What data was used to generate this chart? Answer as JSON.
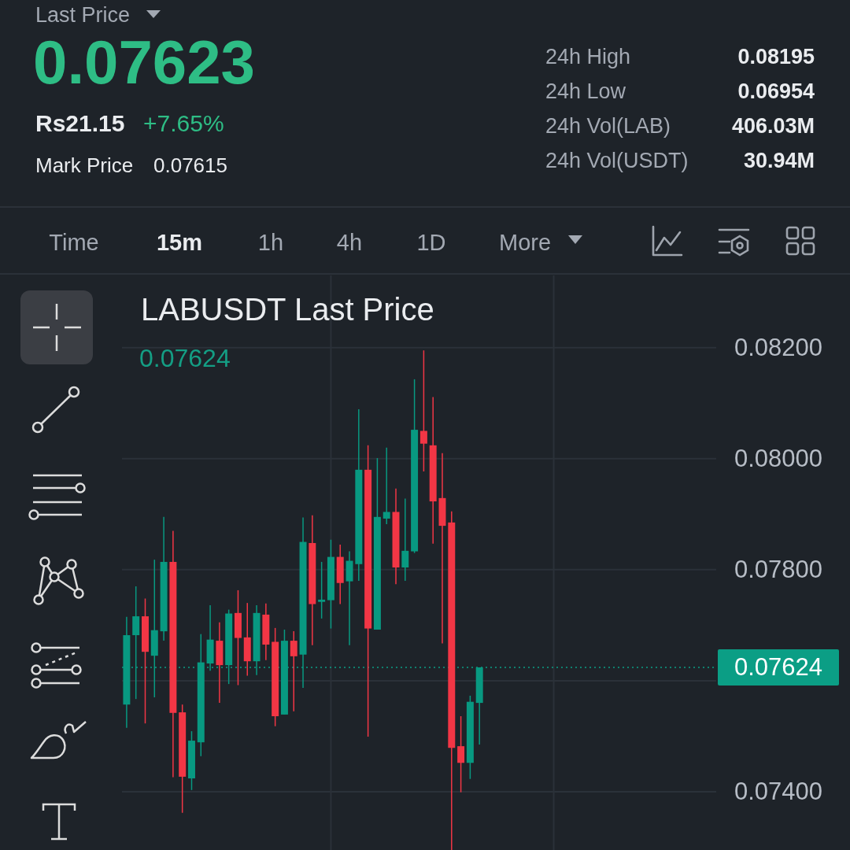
{
  "chart_data": [
    {
      "type": "other",
      "title": "Last Price",
      "annotations": [
        "0.07623",
        "Rs21.15",
        "+7.65%",
        "Mark Price",
        "0.07615",
        "24h High",
        "0.08195",
        "24h Low",
        "0.06954",
        "24h Vol(LAB)",
        "406.03M",
        "24h Vol(USDT)",
        "30.94M",
        "Time",
        "15m",
        "1h",
        "4h",
        "1D",
        "More"
      ]
    },
    {
      "type": "candlestick",
      "title": "LABUSDT Last Price",
      "subtitle": "0.07624",
      "categories": [
        null,
        null,
        null,
        null,
        null,
        null,
        null,
        null,
        null,
        null,
        null,
        null,
        null,
        null,
        null,
        null,
        null,
        null,
        null,
        null,
        null,
        null,
        null,
        null,
        null,
        null,
        null,
        null,
        null,
        null,
        null,
        null,
        null,
        null,
        null,
        null,
        null,
        null,
        null,
        null,
        null,
        null,
        null,
        null,
        null,
        null,
        null,
        null,
        null,
        null,
        null,
        null,
        null,
        null,
        null,
        null,
        null,
        null,
        null,
        null,
        null,
        null,
        null,
        null
      ],
      "ohlc": [
        [
          0.07557,
          0.07715,
          0.07515,
          0.07682
        ],
        [
          0.07682,
          0.0777,
          0.07567,
          0.07716
        ],
        [
          0.07716,
          0.07748,
          0.07523,
          0.07652
        ],
        [
          0.07645,
          0.07818,
          0.0757,
          0.07691
        ],
        [
          0.07689,
          0.07895,
          0.07672,
          0.07814
        ],
        [
          0.07814,
          0.0787,
          0.07426,
          0.07542
        ],
        [
          0.07543,
          0.07557,
          0.07362,
          0.07427
        ],
        [
          0.07424,
          0.07509,
          0.07403,
          0.07492
        ],
        [
          0.07489,
          0.07684,
          0.07464,
          0.07633
        ],
        [
          0.07631,
          0.07736,
          0.07618,
          0.07674
        ],
        [
          0.07672,
          0.07705,
          0.0756,
          0.07628
        ],
        [
          0.07628,
          0.07728,
          0.07594,
          0.07721
        ],
        [
          0.07722,
          0.07763,
          0.07592,
          0.07677
        ],
        [
          0.07678,
          0.0774,
          0.07609,
          0.07635
        ],
        [
          0.07635,
          0.07736,
          0.0761,
          0.07722
        ],
        [
          0.07719,
          0.07739,
          0.07637,
          0.07665
        ],
        [
          0.0767,
          0.07695,
          0.07518,
          0.07536
        ],
        [
          0.07539,
          0.07692,
          0.07539,
          0.07672
        ],
        [
          0.07672,
          0.07689,
          0.07545,
          0.07644
        ],
        [
          0.07647,
          0.07894,
          0.07587,
          0.0785
        ],
        [
          0.07848,
          0.07898,
          0.07664,
          0.07738
        ],
        [
          0.07742,
          0.07814,
          0.07712,
          0.07746
        ],
        [
          0.07745,
          0.07854,
          0.07694,
          0.07823
        ],
        [
          0.07823,
          0.07845,
          0.07738,
          0.07776
        ],
        [
          0.07779,
          0.07833,
          0.07664,
          0.07816
        ],
        [
          0.0781,
          0.08089,
          0.0778,
          0.0798
        ],
        [
          0.0798,
          0.08024,
          0.07499,
          0.07694
        ],
        [
          0.07692,
          0.08001,
          0.07692,
          0.07895
        ],
        [
          0.07892,
          0.0802,
          0.07882,
          0.07904
        ],
        [
          0.07904,
          0.07946,
          0.07774,
          0.07804
        ],
        [
          0.07804,
          0.07928,
          0.0778,
          0.07834
        ],
        [
          0.07833,
          0.08143,
          0.0783,
          0.08052
        ],
        [
          0.0805,
          0.08195,
          0.07977,
          0.08027
        ],
        [
          0.08024,
          0.08111,
          0.07847,
          0.07923
        ],
        [
          0.07929,
          0.0801,
          0.07667,
          0.07879
        ],
        [
          0.07885,
          0.07905,
          0.07295,
          0.07479
        ],
        [
          0.07482,
          0.07536,
          0.07399,
          0.07452
        ],
        [
          0.07452,
          0.07573,
          0.07423,
          0.07562
        ],
        [
          0.0756,
          0.07624,
          0.07485,
          0.07624
        ],
        null,
        null,
        null,
        null,
        null,
        null,
        null,
        null,
        null,
        null,
        null,
        null,
        null,
        null,
        null,
        null,
        null,
        null,
        null,
        null,
        null,
        null,
        null,
        null,
        null
      ],
      "colors": [
        "#089981",
        "#089981",
        "#f23645",
        "#089981",
        "#089981",
        "#f23645",
        "#f23645",
        "#089981",
        "#089981",
        "#089981",
        "#f23645",
        "#089981",
        "#f23645",
        "#f23645",
        "#089981",
        "#f23645",
        "#f23645",
        "#089981",
        "#f23645",
        "#089981",
        "#f23645",
        "#089981",
        "#089981",
        "#f23645",
        "#089981",
        "#089981",
        "#f23645",
        "#089981",
        "#089981",
        "#f23645",
        "#089981",
        "#089981",
        "#f23645",
        "#f23645",
        "#f23645",
        "#f23645",
        "#f23645",
        "#089981",
        "#089981",
        null,
        null,
        null,
        null,
        null,
        null,
        null,
        null,
        null,
        null,
        null,
        null,
        null,
        null,
        null,
        null,
        null,
        null,
        null,
        null,
        null,
        null,
        null,
        null,
        null
      ],
      "ylim": [
        0.07295,
        0.0833
      ],
      "yticks": [
        {
          "value": 0.074,
          "label": "0.07400"
        },
        {
          "value": 0.076,
          "label": null
        },
        {
          "value": 0.078,
          "label": "0.07800"
        },
        {
          "value": 0.08,
          "label": "0.08000"
        },
        {
          "value": 0.082,
          "label": "0.08200"
        }
      ],
      "tick_labels": "y",
      "grid": true,
      "ref_lines": [
        {
          "axis": "y",
          "value": 0.07624,
          "label": "0.07624",
          "color": "#0b9e85",
          "line_style": "dotted"
        }
      ]
    }
  ]
}
